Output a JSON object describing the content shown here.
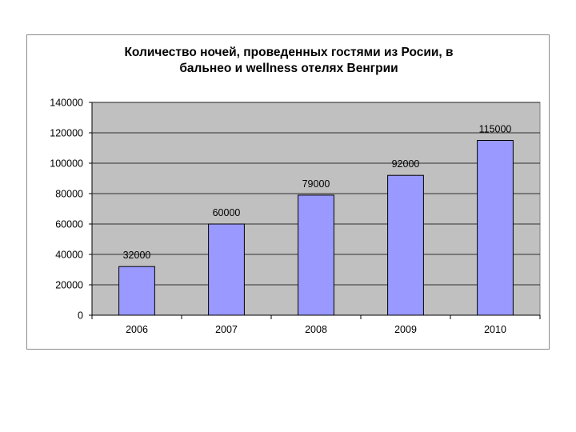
{
  "chart_data": {
    "type": "bar",
    "title_lines": [
      "Количество ночей, проведенных гостями из Росии, в",
      "бальнео и wellness отелях Венгрии"
    ],
    "categories": [
      "2006",
      "2007",
      "2008",
      "2009",
      "2010"
    ],
    "values": [
      32000,
      60000,
      79000,
      92000,
      115000
    ],
    "data_labels": [
      "32000",
      "60000",
      "79000",
      "92000",
      "115000"
    ],
    "y_ticks": [
      "0",
      "20000",
      "40000",
      "60000",
      "80000",
      "100000",
      "120000",
      "140000"
    ],
    "ylim": [
      0,
      140000
    ],
    "xlabel": "",
    "ylabel": "",
    "grid": true,
    "legend": "none",
    "colors": {
      "bar_fill": "#9999ff",
      "bar_stroke": "#000000",
      "plot_background": "#c0c0c0",
      "gridline": "#000000"
    }
  }
}
